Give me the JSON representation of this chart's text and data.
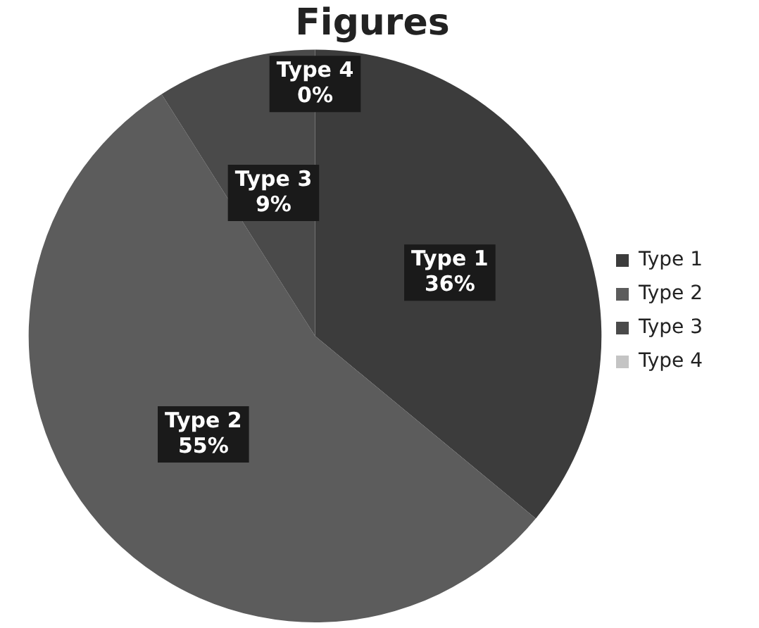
{
  "chart_data": {
    "type": "pie",
    "title": "Figures",
    "categories": [
      "Type 1",
      "Type 2",
      "Type 3",
      "Type 4"
    ],
    "values": [
      36,
      55,
      9,
      0
    ],
    "value_labels": [
      "36%",
      "55%",
      "9%",
      "0%"
    ],
    "colors": [
      "#3c3c3c",
      "#5c5c5c",
      "#4a4a4a",
      "#c4c4c4"
    ],
    "legend": "right"
  }
}
